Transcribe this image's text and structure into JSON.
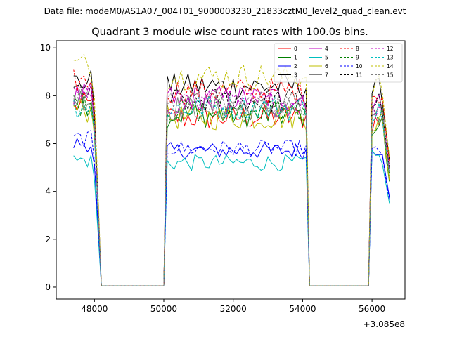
{
  "chart_data": {
    "type": "line",
    "suptitle": "Data file: modeM0/AS1A07_004T01_9000003230_21833cztM0_level2_quad_clean.evt",
    "title": "Quadrant 3 module wise count rates with 100.0s bins.",
    "xlabel": "",
    "ylabel": "",
    "x_offset_label": "+3.085e8",
    "xlim": [
      46900,
      56950
    ],
    "ylim": [
      -0.5,
      10.3
    ],
    "xticks": [
      48000,
      50000,
      52000,
      54000,
      56000
    ],
    "xtick_labels": [
      "48000",
      "50000",
      "52000",
      "54000",
      "56000"
    ],
    "yticks": [
      0,
      2,
      4,
      6,
      8,
      10
    ],
    "ytick_labels": [
      "0",
      "2",
      "4",
      "6",
      "8",
      "10"
    ],
    "legend_position": "top-right",
    "segments": [
      [
        47400,
        48150
      ],
      [
        50100,
        54100
      ],
      [
        56000,
        56500
      ]
    ],
    "series": [
      {
        "name": "0",
        "color": "#ff0000",
        "dash": "solid",
        "level": 7.3,
        "segment_levels": [
          7.6,
          7.1,
          6.9
        ]
      },
      {
        "name": "1",
        "color": "#008000",
        "dash": "solid",
        "level": 7.4,
        "segment_levels": [
          7.7,
          7.2,
          6.8
        ]
      },
      {
        "name": "2",
        "color": "#0000ff",
        "dash": "solid",
        "level": 5.7,
        "segment_levels": [
          6.0,
          5.7,
          5.8
        ]
      },
      {
        "name": "3",
        "color": "#000000",
        "dash": "solid",
        "level": 8.4,
        "segment_levels": [
          8.6,
          8.4,
          8.2
        ]
      },
      {
        "name": "4",
        "color": "#c000c0",
        "dash": "solid",
        "level": 7.9,
        "segment_levels": [
          8.0,
          7.9,
          7.6
        ]
      },
      {
        "name": "5",
        "color": "#00bfbf",
        "dash": "solid",
        "level": 5.2,
        "segment_levels": [
          5.3,
          5.2,
          5.4
        ]
      },
      {
        "name": "6",
        "color": "#bfbf00",
        "dash": "solid",
        "level": 7.2,
        "segment_levels": [
          7.4,
          7.1,
          6.9
        ]
      },
      {
        "name": "7",
        "color": "#808080",
        "dash": "solid",
        "level": 7.5,
        "segment_levels": [
          7.9,
          7.5,
          7.3
        ]
      },
      {
        "name": "8",
        "color": "#ff0000",
        "dash": "dashed",
        "level": 8.2,
        "segment_levels": [
          8.6,
          8.2,
          8.1
        ]
      },
      {
        "name": "9",
        "color": "#008000",
        "dash": "dashed",
        "level": 7.4,
        "segment_levels": [
          7.7,
          7.4,
          7.2
        ]
      },
      {
        "name": "10",
        "color": "#0000ff",
        "dash": "dashed",
        "level": 5.8,
        "segment_levels": [
          6.2,
          5.8,
          5.6
        ]
      },
      {
        "name": "11",
        "color": "#000000",
        "dash": "dashed",
        "level": 7.8,
        "segment_levels": [
          8.2,
          7.8,
          7.7
        ]
      },
      {
        "name": "12",
        "color": "#c000c0",
        "dash": "dashed",
        "level": 7.7,
        "segment_levels": [
          7.9,
          7.7,
          7.5
        ]
      },
      {
        "name": "13",
        "color": "#00bfbf",
        "dash": "dashed",
        "level": 7.6,
        "segment_levels": [
          7.6,
          7.5,
          7.3
        ]
      },
      {
        "name": "14",
        "color": "#bfbf00",
        "dash": "dashed",
        "level": 8.7,
        "segment_levels": [
          9.3,
          8.8,
          8.4
        ]
      },
      {
        "name": "15",
        "color": "#808080",
        "dash": "dashed",
        "level": 7.7,
        "segment_levels": [
          8.1,
          7.7,
          7.4
        ]
      }
    ]
  }
}
